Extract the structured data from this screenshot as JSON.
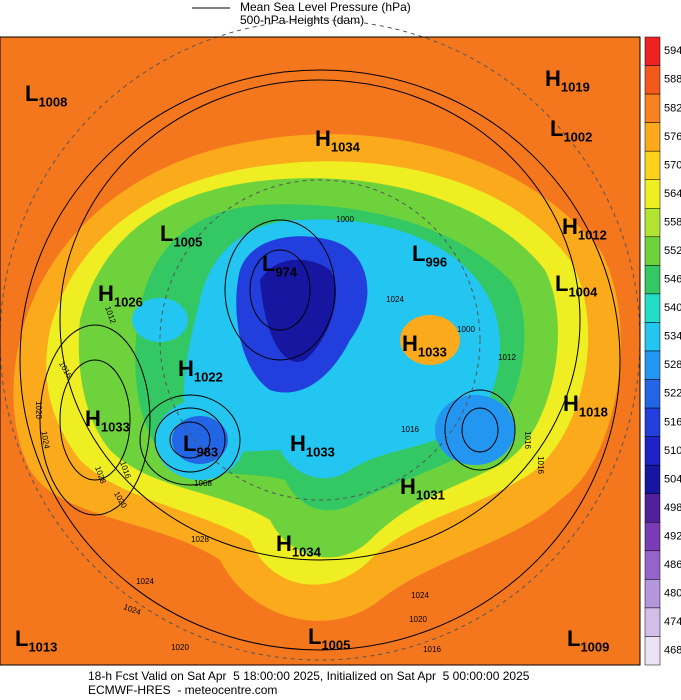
{
  "legend": {
    "line_label": "Mean Sea Level Pressure (hPa)",
    "fill_label": "500-hPa Heights (dam)"
  },
  "colorbar": {
    "levels": [
      594,
      588,
      582,
      576,
      570,
      564,
      558,
      552,
      546,
      540,
      534,
      528,
      522,
      516,
      510,
      504,
      498,
      492,
      486,
      480,
      474,
      468
    ],
    "colors": [
      "#ee2222",
      "#f4591c",
      "#f7811e",
      "#fbaa1c",
      "#fcd21c",
      "#eeee22",
      "#b4e432",
      "#6ed23c",
      "#34c864",
      "#22dcc8",
      "#22c6f0",
      "#2296f0",
      "#2266e6",
      "#223edc",
      "#2020c8",
      "#1616a0",
      "#50209a",
      "#7a3cb4",
      "#9664c8",
      "#b496dc",
      "#d2bee8",
      "#ece2f5"
    ]
  },
  "pressure_centers": [
    {
      "type": "L",
      "value": 1008
    },
    {
      "type": "H",
      "value": 1019
    },
    {
      "type": "H",
      "value": 1034
    },
    {
      "type": "L",
      "value": 1002
    },
    {
      "type": "L",
      "value": 1005
    },
    {
      "type": "H",
      "value": 1012
    },
    {
      "type": "L",
      "value": 974
    },
    {
      "type": "L",
      "value": 996
    },
    {
      "type": "L",
      "value": 1004
    },
    {
      "type": "H",
      "value": 1026
    },
    {
      "type": "H",
      "value": 1033
    },
    {
      "type": "H",
      "value": 1022
    },
    {
      "type": "H",
      "value": 1018
    },
    {
      "type": "H",
      "value": 1033
    },
    {
      "type": "L",
      "value": 983
    },
    {
      "type": "H",
      "value": 1033
    },
    {
      "type": "H",
      "value": 1031
    },
    {
      "type": "H",
      "value": 1034
    },
    {
      "type": "L",
      "value": 1013
    },
    {
      "type": "L",
      "value": 1005
    },
    {
      "type": "L",
      "value": 1009
    }
  ],
  "contour_labels": [
    1020,
    1024,
    1028,
    1016,
    1016,
    1012,
    1000,
    1024,
    1012,
    1016,
    1008,
    1000,
    1016,
    1028,
    1024,
    1020,
    1024,
    1020,
    1016,
    1016,
    1024,
    1020
  ],
  "footer": {
    "line1": "18-h Fcst Valid on Sat Apr  5 18:00:00 2025, Initialized on Sat Apr  5 00:00:00 2025",
    "line2": "ECMWF-HRES  - meteocentre.com"
  }
}
